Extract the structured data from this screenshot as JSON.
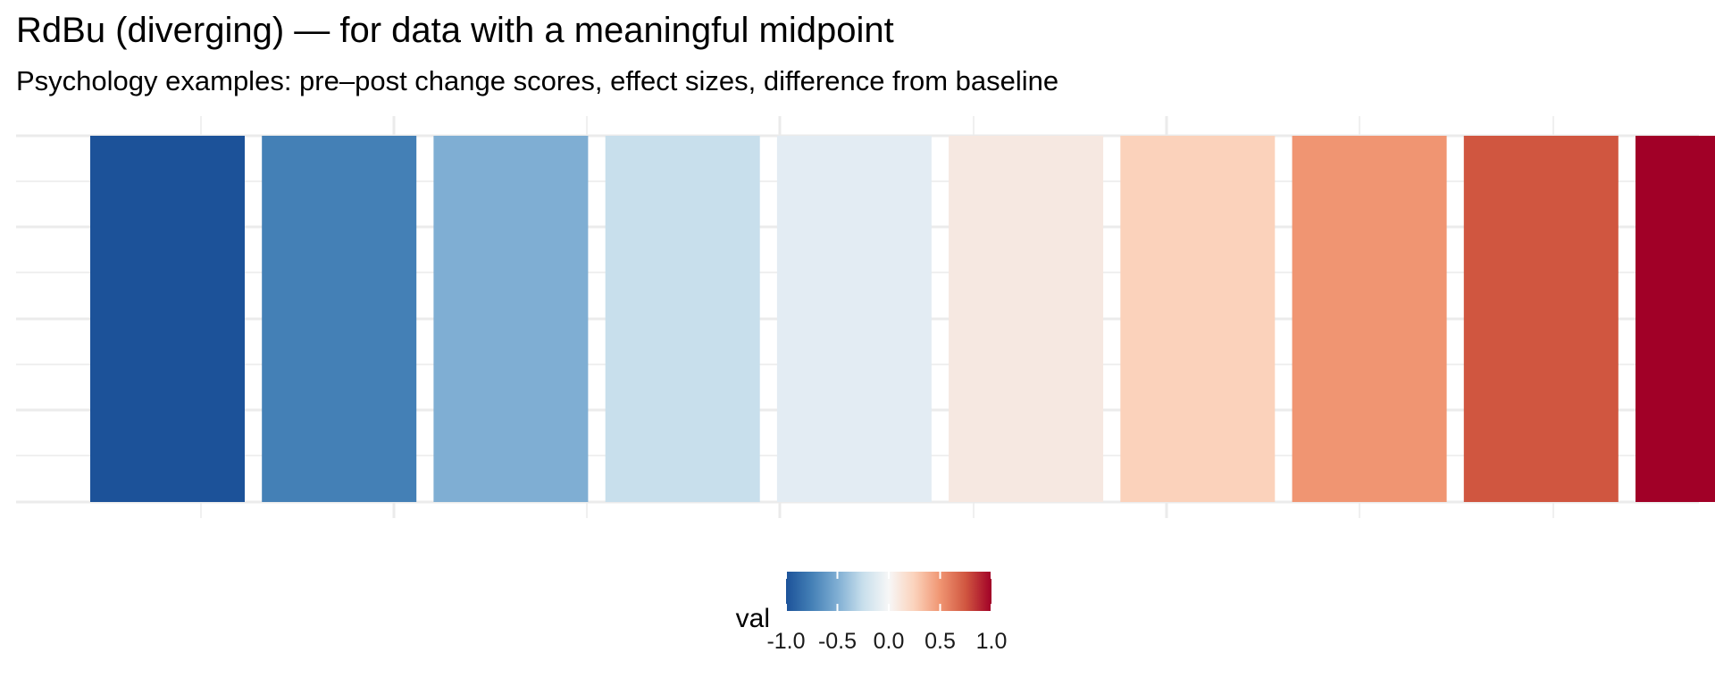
{
  "chart_data": {
    "type": "heatmap",
    "title": "RdBu (diverging) — for data with a meaningful midpoint",
    "subtitle": "Psychology examples: pre–post change scores, effect sizes, difference from baseline",
    "values": [
      -1.0,
      -0.778,
      -0.556,
      -0.333,
      -0.111,
      0.111,
      0.333,
      0.556,
      0.778,
      1.0
    ],
    "tile_colors": [
      "#1C5299",
      "#4480B6",
      "#7FAED3",
      "#C8DFEC",
      "#E3ECF3",
      "#F6E8E1",
      "#FBD2BB",
      "#F09572",
      "#D05640",
      "#A10027"
    ],
    "xlabel": "",
    "ylabel": "",
    "grid": true,
    "legend": {
      "title": "val",
      "position": "bottom",
      "range": [
        -1.0,
        1.0
      ],
      "ticks": [
        -1.0,
        -0.5,
        0.0,
        0.5,
        1.0
      ],
      "tick_labels": [
        "-1.0",
        "-0.5",
        "0.0",
        "0.5",
        "1.0"
      ],
      "gradient_stops": [
        "#1C5299",
        "#4480B6",
        "#7FAED3",
        "#C8DFEC",
        "#F7F7F7",
        "#FBD2BB",
        "#F09572",
        "#D05640",
        "#A10027"
      ]
    }
  }
}
